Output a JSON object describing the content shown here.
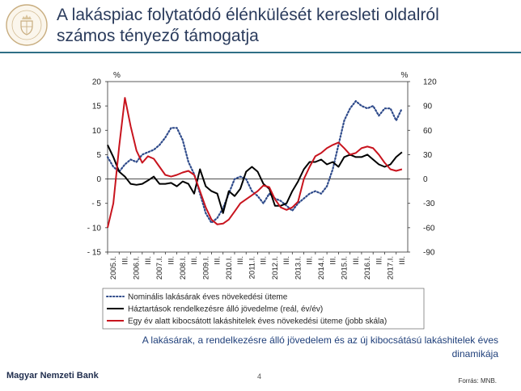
{
  "page": {
    "title_line1": "A lakáspiac folytatódó élénkülését keresleti oldalról",
    "title_line2": "számos tényező támogatja",
    "caption_line1": "A lakásárak, a rendelkezésre álló jövedelem és az új kibocsátású lakáshitelek éves",
    "caption_line2": "dinamikája",
    "bank_name": "Magyar Nemzeti Bank",
    "page_number": "4",
    "source": "Forrás: MNB.",
    "accent_color": "#2f6f86"
  },
  "chart_data": {
    "type": "line",
    "left_axis": {
      "unit": "%",
      "min": -15,
      "max": 20,
      "step": 5
    },
    "right_axis": {
      "unit": "%",
      "min": -90,
      "max": 120,
      "step": 30
    },
    "x_labels": [
      "2005.I.",
      "III.",
      "2006.I.",
      "III.",
      "2007.I.",
      "III.",
      "2008.I.",
      "III.",
      "2009.I.",
      "III.",
      "2010.I.",
      "III.",
      "2011.I.",
      "III.",
      "2012.I.",
      "III.",
      "2013.I.",
      "III.",
      "2014.I.",
      "III.",
      "2015.I.",
      "III.",
      "2016.I.",
      "III.",
      "2017.I.",
      "III."
    ],
    "x_start": 2005.0,
    "x_end": 2018.0,
    "series": [
      {
        "name": "Nominális lakásárak éves növekedési üteme",
        "color": "#2e4a8a",
        "style": "dotted",
        "axis": "left",
        "x": [
          2005.0,
          2005.25,
          2005.5,
          2005.75,
          2006.0,
          2006.25,
          2006.5,
          2006.75,
          2007.0,
          2007.25,
          2007.5,
          2007.75,
          2008.0,
          2008.25,
          2008.5,
          2008.75,
          2009.0,
          2009.25,
          2009.5,
          2009.75,
          2010.0,
          2010.25,
          2010.5,
          2010.75,
          2011.0,
          2011.25,
          2011.5,
          2011.75,
          2012.0,
          2012.25,
          2012.5,
          2012.75,
          2013.0,
          2013.25,
          2013.5,
          2013.75,
          2014.0,
          2014.25,
          2014.5,
          2014.75,
          2015.0,
          2015.25,
          2015.5,
          2015.75,
          2016.0,
          2016.25,
          2016.5,
          2016.75,
          2017.0,
          2017.25,
          2017.5,
          2017.75
        ],
        "y": [
          4.5,
          2.5,
          1.5,
          3,
          4,
          3.5,
          5,
          5.5,
          6,
          7,
          8.5,
          10.5,
          10.5,
          8,
          3.5,
          1,
          -3,
          -7,
          -9,
          -8,
          -6,
          -3,
          0,
          0.5,
          0,
          -2.5,
          -3.5,
          -5,
          -3,
          -4,
          -4.5,
          -5.5,
          -6.5,
          -5,
          -4,
          -3,
          -2.5,
          -3,
          -1.5,
          2,
          7,
          12,
          14.5,
          16,
          15,
          14.5,
          15,
          13,
          14.5,
          14.5,
          12,
          14.5
        ]
      },
      {
        "name": "Háztartások rendelkezésre álló jövedelme (reál, év/év)",
        "color": "#000000",
        "style": "solid",
        "axis": "left",
        "x": [
          2005.0,
          2005.25,
          2005.5,
          2005.75,
          2006.0,
          2006.25,
          2006.5,
          2006.75,
          2007.0,
          2007.25,
          2007.5,
          2007.75,
          2008.0,
          2008.25,
          2008.5,
          2008.75,
          2009.0,
          2009.25,
          2009.5,
          2009.75,
          2010.0,
          2010.25,
          2010.5,
          2010.75,
          2011.0,
          2011.25,
          2011.5,
          2011.75,
          2012.0,
          2012.25,
          2012.5,
          2012.75,
          2013.0,
          2013.25,
          2013.5,
          2013.75,
          2014.0,
          2014.25,
          2014.5,
          2014.75,
          2015.0,
          2015.25,
          2015.5,
          2015.75,
          2016.0,
          2016.25,
          2016.5,
          2016.75,
          2017.0,
          2017.25,
          2017.5,
          2017.75
        ],
        "y": [
          7,
          4.5,
          1.5,
          0.5,
          -1,
          -1.2,
          -1,
          -0.3,
          0.5,
          -1,
          -1,
          -0.8,
          -1.5,
          -0.5,
          -1,
          -3,
          2,
          -1.5,
          -2.5,
          -3,
          -7,
          -2.5,
          -3.5,
          -2,
          1.5,
          2.5,
          1.5,
          -1,
          -2,
          -5.5,
          -5.5,
          -5,
          -2.5,
          -0.5,
          2,
          3.5,
          3.5,
          4,
          3,
          3.5,
          2.5,
          4.5,
          5,
          4.5,
          4.5,
          5,
          4,
          3,
          2.5,
          3,
          4.5,
          5.5
        ]
      },
      {
        "name": "Egy év alatt kibocsátott lakáshitelek éves növekedési üteme (jobb skála)",
        "color": "#c8141e",
        "style": "solid",
        "axis": "right",
        "x": [
          2005.0,
          2005.25,
          2005.5,
          2005.75,
          2006.0,
          2006.25,
          2006.5,
          2006.75,
          2007.0,
          2007.25,
          2007.5,
          2007.75,
          2008.0,
          2008.25,
          2008.5,
          2008.75,
          2009.0,
          2009.25,
          2009.5,
          2009.75,
          2010.0,
          2010.25,
          2010.5,
          2010.75,
          2011.0,
          2011.25,
          2011.5,
          2011.75,
          2012.0,
          2012.25,
          2012.5,
          2012.75,
          2013.0,
          2013.25,
          2013.5,
          2013.75,
          2014.0,
          2014.25,
          2014.5,
          2014.75,
          2015.0,
          2015.25,
          2015.5,
          2015.75,
          2016.0,
          2016.25,
          2016.5,
          2016.75,
          2017.0,
          2017.25,
          2017.5,
          2017.75
        ],
        "y": [
          -60,
          -30,
          40,
          100,
          65,
          35,
          20,
          28,
          25,
          15,
          5,
          3,
          5,
          8,
          10,
          5,
          -15,
          -35,
          -50,
          -56,
          -55,
          -50,
          -40,
          -30,
          -25,
          -20,
          -15,
          -8,
          -10,
          -25,
          -35,
          -38,
          -35,
          -28,
          0,
          15,
          28,
          32,
          38,
          42,
          45,
          38,
          30,
          32,
          38,
          40,
          38,
          30,
          20,
          12,
          10,
          12
        ]
      }
    ]
  }
}
